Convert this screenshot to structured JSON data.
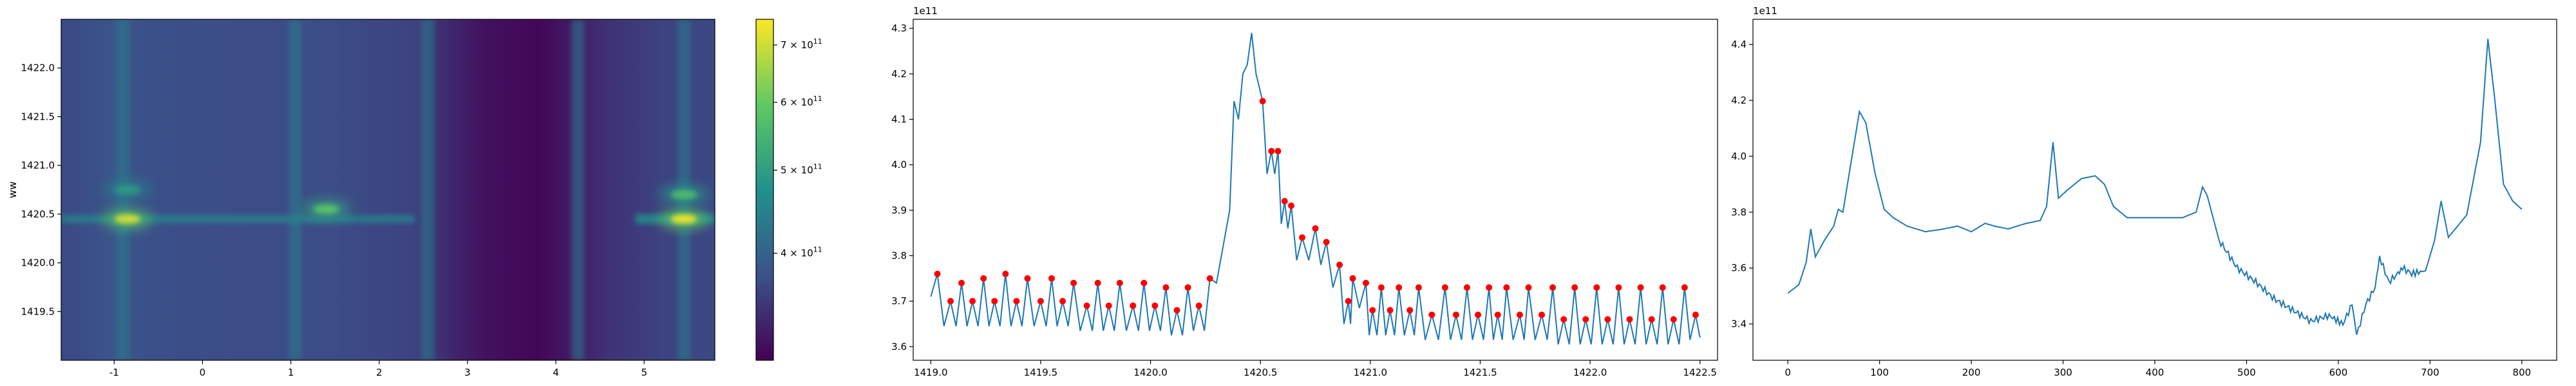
{
  "chart_data": [
    {
      "type": "heatmap",
      "xlabel": "",
      "ylabel": "ww",
      "xlim": [
        -1.6,
        5.8
      ],
      "ylim": [
        1419.0,
        1422.5
      ],
      "xticks": [
        "-1",
        "0",
        "1",
        "2",
        "3",
        "4",
        "5"
      ],
      "yticks": [
        "1419.5",
        "1420.0",
        "1420.5",
        "1421.0",
        "1421.5",
        "1422.0"
      ],
      "colormap": "viridis",
      "colorbar": {
        "scale": "log",
        "range": [
          300000000000.0,
          750000000000.0
        ],
        "ticks": [
          "4 × 10^11",
          "5 × 10^11",
          "6 × 10^11",
          "7 × 10^11"
        ]
      },
      "vertical_bands_x": [
        -0.9,
        1.05,
        2.55,
        4.25,
        5.45
      ],
      "hot_spots": [
        {
          "x": -0.85,
          "y": 1420.45,
          "level": 0.95
        },
        {
          "x": -0.85,
          "y": 1420.75,
          "level": 0.55
        },
        {
          "x": 1.4,
          "y": 1420.55,
          "level": 0.75
        },
        {
          "x": 5.45,
          "y": 1420.45,
          "level": 1.0
        },
        {
          "x": 5.45,
          "y": 1420.7,
          "level": 0.7
        }
      ]
    },
    {
      "type": "line",
      "xlabel": "",
      "ylabel": "",
      "offset_text": "1e11",
      "xlim": [
        1418.92,
        1422.58
      ],
      "ylim": [
        3.57,
        4.32
      ],
      "xticks": [
        "1419.0",
        "1419.5",
        "1420.0",
        "1420.5",
        "1421.0",
        "1421.5",
        "1422.0",
        "1422.5"
      ],
      "yticks": [
        "3.6",
        "3.7",
        "3.8",
        "3.9",
        "4.0",
        "4.1",
        "4.2",
        "4.3"
      ],
      "line_color": "#1f77b4",
      "marker_color": "#ff0000",
      "series_x_range": [
        1419.0,
        1422.5
      ],
      "peaks_upper": [
        [
          1419.03,
          3.76
        ],
        [
          1419.14,
          3.74
        ],
        [
          1419.24,
          3.75
        ],
        [
          1419.34,
          3.76
        ],
        [
          1419.44,
          3.75
        ],
        [
          1419.55,
          3.75
        ],
        [
          1419.65,
          3.74
        ],
        [
          1419.76,
          3.74
        ],
        [
          1419.86,
          3.74
        ],
        [
          1419.97,
          3.74
        ],
        [
          1420.07,
          3.73
        ],
        [
          1420.17,
          3.73
        ],
        [
          1420.27,
          3.75
        ],
        [
          1420.51,
          4.14
        ],
        [
          1420.55,
          4.03
        ],
        [
          1420.58,
          4.03
        ],
        [
          1420.61,
          3.92
        ],
        [
          1420.64,
          3.91
        ],
        [
          1420.69,
          3.84
        ],
        [
          1420.75,
          3.86
        ],
        [
          1420.8,
          3.83
        ],
        [
          1420.86,
          3.78
        ],
        [
          1420.92,
          3.75
        ],
        [
          1420.98,
          3.74
        ],
        [
          1421.05,
          3.73
        ],
        [
          1421.13,
          3.73
        ],
        [
          1421.22,
          3.73
        ],
        [
          1421.34,
          3.73
        ],
        [
          1421.44,
          3.73
        ],
        [
          1421.54,
          3.73
        ],
        [
          1421.62,
          3.73
        ],
        [
          1421.72,
          3.73
        ],
        [
          1421.83,
          3.73
        ],
        [
          1421.93,
          3.73
        ],
        [
          1422.03,
          3.73
        ],
        [
          1422.13,
          3.73
        ],
        [
          1422.23,
          3.73
        ],
        [
          1422.33,
          3.73
        ],
        [
          1422.43,
          3.73
        ]
      ],
      "peaks_lower": [
        [
          1419.09,
          3.7
        ],
        [
          1419.19,
          3.7
        ],
        [
          1419.29,
          3.7
        ],
        [
          1419.39,
          3.7
        ],
        [
          1419.5,
          3.7
        ],
        [
          1419.6,
          3.7
        ],
        [
          1419.71,
          3.69
        ],
        [
          1419.81,
          3.69
        ],
        [
          1419.92,
          3.69
        ],
        [
          1420.02,
          3.69
        ],
        [
          1420.12,
          3.68
        ],
        [
          1420.22,
          3.69
        ],
        [
          1420.9,
          3.7
        ],
        [
          1421.01,
          3.68
        ],
        [
          1421.09,
          3.68
        ],
        [
          1421.18,
          3.68
        ],
        [
          1421.28,
          3.67
        ],
        [
          1421.39,
          3.67
        ],
        [
          1421.49,
          3.67
        ],
        [
          1421.58,
          3.67
        ],
        [
          1421.68,
          3.67
        ],
        [
          1421.78,
          3.67
        ],
        [
          1421.88,
          3.66
        ],
        [
          1421.98,
          3.66
        ],
        [
          1422.08,
          3.66
        ],
        [
          1422.18,
          3.66
        ],
        [
          1422.28,
          3.66
        ],
        [
          1422.38,
          3.66
        ],
        [
          1422.48,
          3.67
        ]
      ]
    },
    {
      "type": "line",
      "xlabel": "",
      "ylabel": "",
      "offset_text": "1e11",
      "xlim": [
        -38,
        838
      ],
      "ylim": [
        3.27,
        4.49
      ],
      "xticks": [
        "0",
        "100",
        "200",
        "300",
        "400",
        "500",
        "600",
        "700",
        "800"
      ],
      "yticks": [
        "3.4",
        "3.6",
        "3.8",
        "4.0",
        "4.2",
        "4.4"
      ],
      "line_color": "#1f77b4",
      "anchor_points": [
        [
          0,
          3.51
        ],
        [
          12,
          3.54
        ],
        [
          20,
          3.62
        ],
        [
          25,
          3.74
        ],
        [
          30,
          3.64
        ],
        [
          40,
          3.7
        ],
        [
          50,
          3.75
        ],
        [
          55,
          3.81
        ],
        [
          60,
          3.8
        ],
        [
          70,
          4.0
        ],
        [
          78,
          4.16
        ],
        [
          85,
          4.12
        ],
        [
          95,
          3.94
        ],
        [
          105,
          3.81
        ],
        [
          115,
          3.78
        ],
        [
          130,
          3.75
        ],
        [
          150,
          3.73
        ],
        [
          170,
          3.74
        ],
        [
          185,
          3.75
        ],
        [
          200,
          3.73
        ],
        [
          215,
          3.76
        ],
        [
          225,
          3.75
        ],
        [
          240,
          3.74
        ],
        [
          260,
          3.76
        ],
        [
          275,
          3.77
        ],
        [
          282,
          3.82
        ],
        [
          289,
          4.05
        ],
        [
          295,
          3.85
        ],
        [
          305,
          3.88
        ],
        [
          320,
          3.92
        ],
        [
          335,
          3.93
        ],
        [
          345,
          3.9
        ],
        [
          355,
          3.82
        ],
        [
          370,
          3.78
        ],
        [
          400,
          3.78
        ],
        [
          430,
          3.78
        ],
        [
          445,
          3.8
        ],
        [
          452,
          3.89
        ],
        [
          457,
          3.86
        ],
        [
          470,
          3.7
        ],
        [
          490,
          3.6
        ],
        [
          510,
          3.55
        ],
        [
          530,
          3.49
        ],
        [
          550,
          3.45
        ],
        [
          570,
          3.41
        ],
        [
          590,
          3.43
        ],
        [
          605,
          3.4
        ],
        [
          615,
          3.47
        ],
        [
          620,
          3.36
        ],
        [
          630,
          3.47
        ],
        [
          640,
          3.53
        ],
        [
          645,
          3.64
        ],
        [
          655,
          3.55
        ],
        [
          665,
          3.58
        ],
        [
          670,
          3.6
        ],
        [
          680,
          3.58
        ],
        [
          695,
          3.59
        ],
        [
          705,
          3.7
        ],
        [
          712,
          3.84
        ],
        [
          720,
          3.71
        ],
        [
          740,
          3.79
        ],
        [
          755,
          4.05
        ],
        [
          763,
          4.42
        ],
        [
          770,
          4.22
        ],
        [
          780,
          3.9
        ],
        [
          790,
          3.84
        ],
        [
          800,
          3.81
        ]
      ]
    }
  ]
}
